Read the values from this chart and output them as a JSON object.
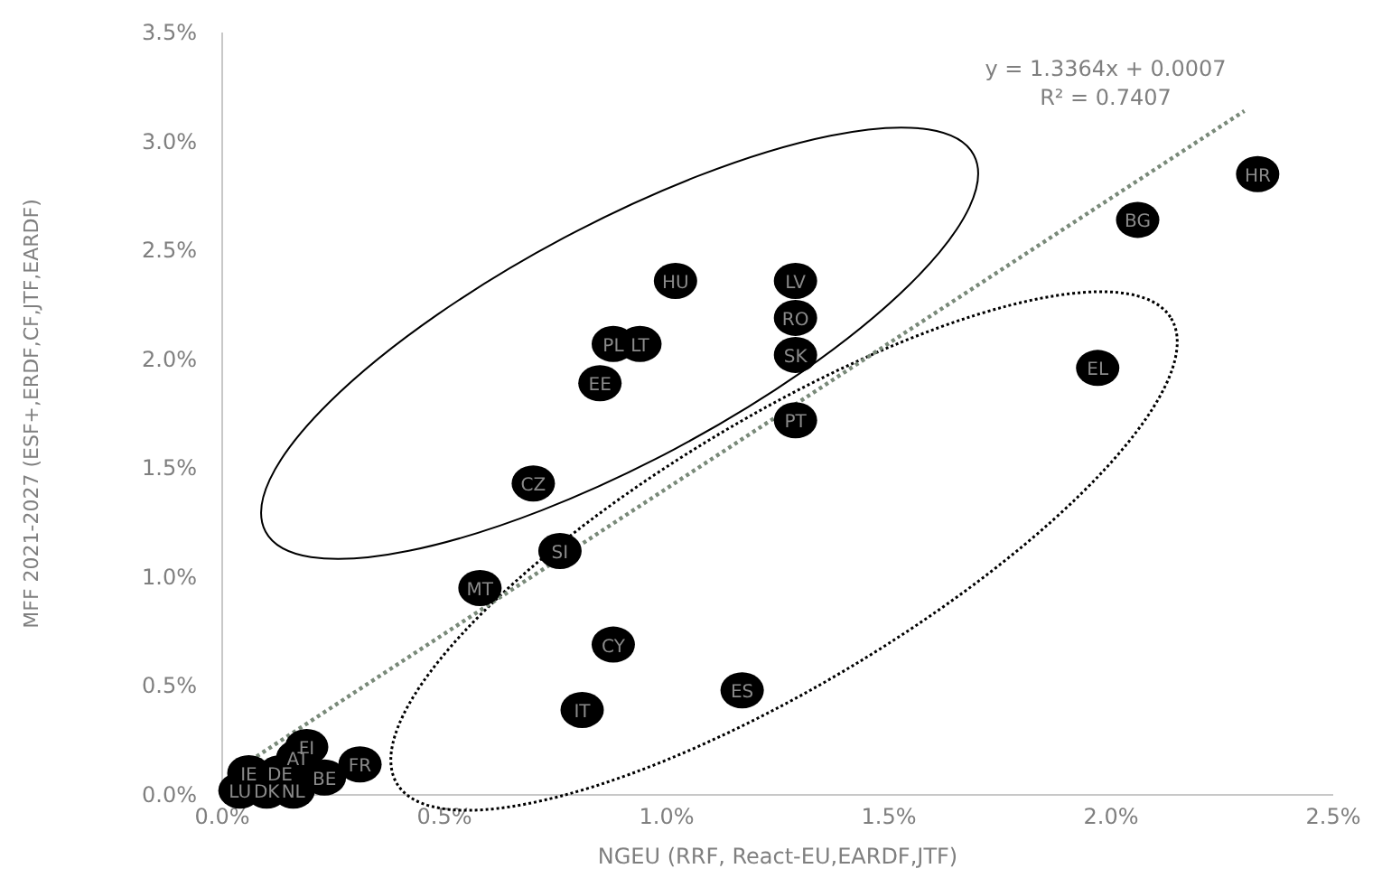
{
  "chart_data": {
    "type": "scatter",
    "xlabel": "NGEU (RRF, React-EU,EARDF,JTF)",
    "ylabel": "MFF 2021-2027 (ESF+,ERDF,CF,JTF,EARDF)",
    "xlim": [
      0,
      2.5
    ],
    "ylim": [
      0,
      3.5
    ],
    "xticks": [
      {
        "value": 0,
        "label": "0.0%"
      },
      {
        "value": 0.5,
        "label": "0.5%"
      },
      {
        "value": 1,
        "label": "1.0%"
      },
      {
        "value": 1.5,
        "label": "1.5%"
      },
      {
        "value": 2,
        "label": "2.0%"
      },
      {
        "value": 2.5,
        "label": "2.5%"
      }
    ],
    "yticks": [
      {
        "value": 0,
        "label": "0.0%"
      },
      {
        "value": 0.5,
        "label": "0.5%"
      },
      {
        "value": 1,
        "label": "1.0%"
      },
      {
        "value": 1.5,
        "label": "1.5%"
      },
      {
        "value": 2,
        "label": "2.0%"
      },
      {
        "value": 2.5,
        "label": "2.5%"
      },
      {
        "value": 3,
        "label": "3.0%"
      },
      {
        "value": 3.5,
        "label": "3.5%"
      }
    ],
    "grid": false,
    "marker": "circle",
    "series": [
      {
        "type": "line",
        "color": "#7a8a7a",
        "line_style": "dotted",
        "marker": "none",
        "x": [
          0.05,
          2.3
        ],
        "values": [
          0.14,
          3.14
        ]
      },
      {
        "color": "#000000",
        "x": [
          2.33,
          2.06,
          1.97,
          1.29,
          1.02,
          1.29,
          1.29,
          0.88,
          0.94,
          0.85,
          1.29,
          0.7,
          0.76,
          0.58,
          0.88,
          1.17,
          0.81,
          0.31,
          0.19,
          0.17,
          0.23,
          0.06,
          0.13,
          0.04,
          0.1,
          0.16
        ],
        "values": [
          2.85,
          2.64,
          1.96,
          2.36,
          2.36,
          2.19,
          2.02,
          2.07,
          2.07,
          1.89,
          1.72,
          1.43,
          1.12,
          0.95,
          0.69,
          0.48,
          0.39,
          0.14,
          0.22,
          0.17,
          0.08,
          0.1,
          0.1,
          0.02,
          0.02,
          0.02
        ],
        "value_labels": [
          "HR",
          "BG",
          "EL",
          "LV",
          "HU",
          "RO",
          "SK",
          "PL",
          "LT",
          "EE",
          "PT",
          "CZ",
          "SI",
          "MT",
          "CY",
          "ES",
          "IT",
          "FR",
          "FI",
          "AT",
          "BE",
          "IE",
          "DE",
          "LU",
          "DK",
          "NL"
        ]
      }
    ],
    "annotations": [
      "y = 1.3364x + 0.0007",
      "R² = 0.7407"
    ]
  }
}
